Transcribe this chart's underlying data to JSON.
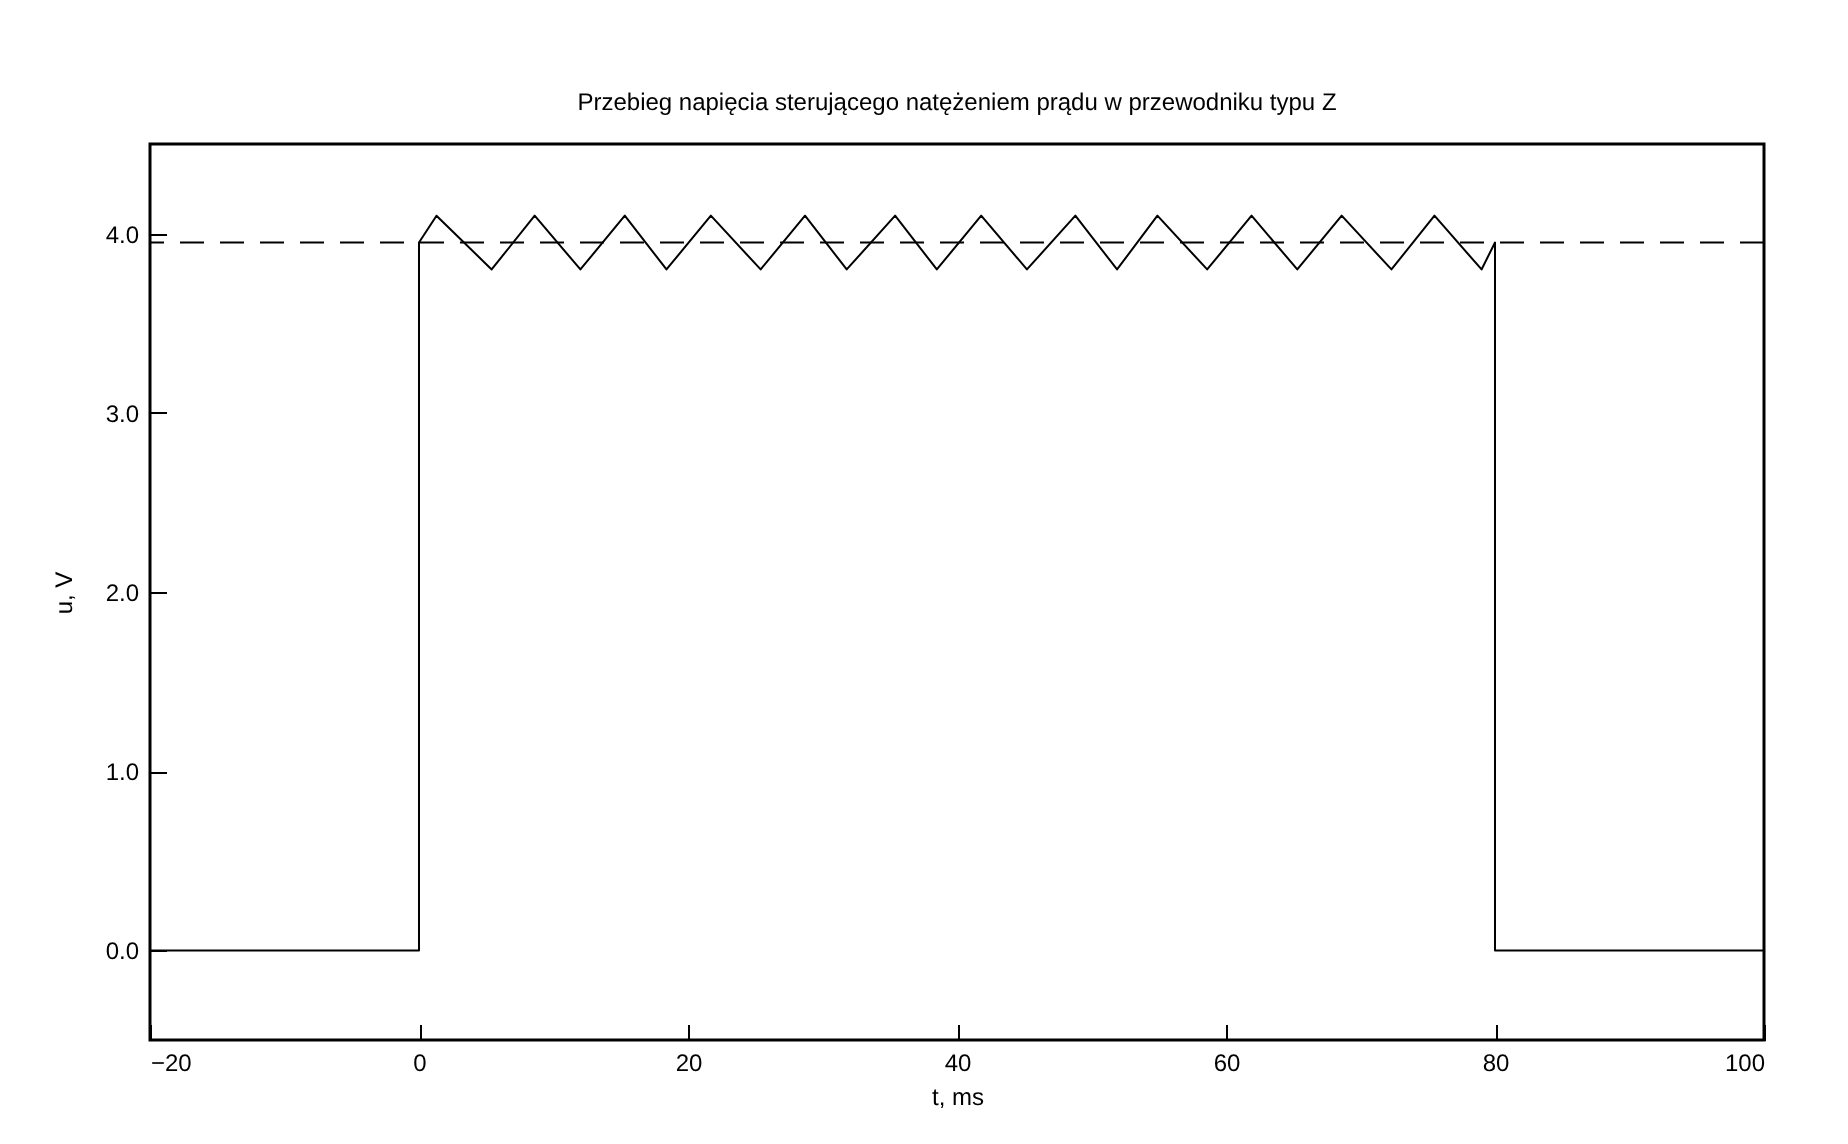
{
  "chart_data": {
    "type": "line",
    "title": "Przebieg napięcia sterującego natężeniem prądu w przewodniku typu Z",
    "xlabel": "t, ms",
    "ylabel": "u, V",
    "xlim": [
      -20,
      100
    ],
    "ylim": [
      -0.5,
      4.5
    ],
    "xticks": [
      -20,
      0,
      20,
      40,
      60,
      80,
      100
    ],
    "yticks": [
      {
        "value": 0,
        "label": "0.0"
      },
      {
        "value": 1,
        "label": "1.0"
      },
      {
        "value": 2,
        "label": "2.0"
      },
      {
        "value": 3,
        "label": "3.0"
      },
      {
        "value": 4,
        "label": "4.0"
      }
    ],
    "grid": false,
    "marker": "none",
    "line_style": "solid",
    "ref_lines": [
      {
        "axis": "y",
        "value": 3.95,
        "label": null,
        "line_style": "dashed"
      }
    ],
    "series": [
      {
        "color": "#000000",
        "x": [
          -20,
          0,
          0,
          1.3,
          5.4,
          8.6,
          12.0,
          15.3,
          18.4,
          21.7,
          25.4,
          28.7,
          31.8,
          35.4,
          38.5,
          41.8,
          45.2,
          48.8,
          51.9,
          54.9,
          58.6,
          61.9,
          65.3,
          68.6,
          72.3,
          75.5,
          79.0,
          80,
          80,
          100
        ],
        "values": [
          0,
          0,
          3.95,
          4.1,
          3.8,
          4.1,
          3.8,
          4.1,
          3.8,
          4.1,
          3.8,
          4.1,
          3.8,
          4.1,
          3.8,
          4.1,
          3.8,
          4.1,
          3.8,
          4.1,
          3.8,
          4.1,
          3.8,
          4.1,
          3.8,
          4.1,
          3.8,
          3.95,
          0,
          0
        ]
      }
    ]
  }
}
